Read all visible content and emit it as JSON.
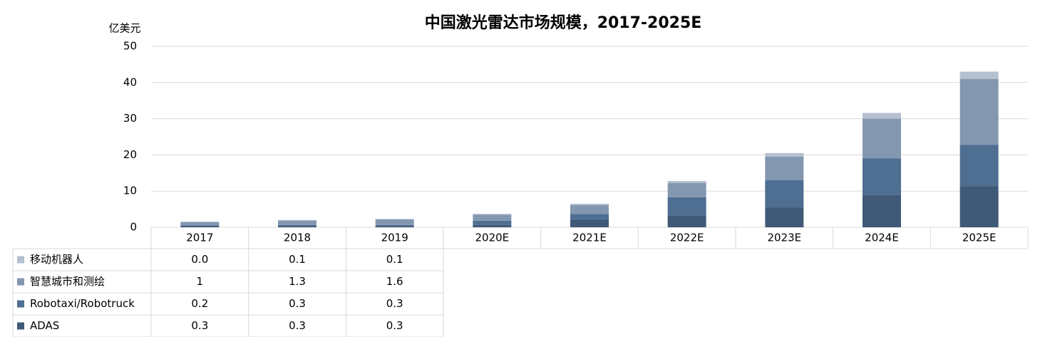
{
  "chart_data": {
    "type": "stacked_bar",
    "title": "中国激光雷达市场规模，2017-2025E",
    "y_label": "亿美元",
    "categories": [
      "2017",
      "2018",
      "2019",
      "2020E",
      "2021E",
      "2022E",
      "2023E",
      "2024E",
      "2025E"
    ],
    "series": [
      {
        "name": "ADAS",
        "color": "#3f5a78",
        "values": [
          0.3,
          0.3,
          0.3,
          0.6,
          2.2,
          3.3,
          5.5,
          9.0,
          11.4
        ],
        "value_labels": [
          "0.3",
          "0.3",
          "0.3",
          null,
          null,
          null,
          null,
          null,
          null
        ]
      },
      {
        "name": "Robotaxi/Robotruck",
        "color": "#4e6e92",
        "values": [
          0.2,
          0.3,
          0.3,
          1.2,
          1.5,
          5.0,
          7.5,
          10.0,
          11.4
        ],
        "value_labels": [
          "0.2",
          "0.3",
          "0.3",
          null,
          null,
          null,
          null,
          null,
          null
        ]
      },
      {
        "name": "智慧城市和测绘",
        "color": "#8497b0",
        "values": [
          1,
          1.3,
          1.6,
          1.7,
          2.4,
          3.9,
          6.5,
          11.0,
          18.2
        ],
        "value_labels": [
          "1",
          "1.3",
          "1.6",
          null,
          null,
          null,
          null,
          null,
          null
        ]
      },
      {
        "name": "移动机器人",
        "color": "#b4bfd0",
        "values": [
          0,
          0.1,
          0.1,
          0.2,
          0.4,
          0.6,
          1.0,
          1.6,
          2.0
        ],
        "value_labels": [
          "0.0",
          "0.1",
          "0.1",
          null,
          null,
          null,
          null,
          null,
          null
        ]
      }
    ],
    "ylim": [
      0,
      50
    ],
    "yticks": [
      0,
      10,
      20,
      30,
      40,
      50
    ],
    "grid": true
  }
}
